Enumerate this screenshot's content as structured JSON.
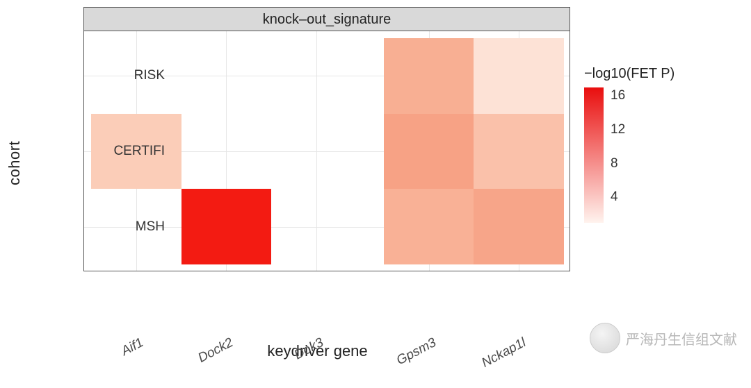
{
  "chart": {
    "type": "heatmap",
    "strip_label": "knock–out_signature",
    "x_label": "keydriver gene",
    "y_label": "cohort",
    "x_categories": [
      "Aif1",
      "Dock2",
      "Dok3",
      "Gpsm3",
      "Nckap1l"
    ],
    "y_categories": [
      "RISK",
      "CERTIFI",
      "MSH"
    ],
    "cells": [
      {
        "x": "Gpsm3",
        "y": "RISK",
        "value": 5.0,
        "color": "#f8af93"
      },
      {
        "x": "Nckap1l",
        "y": "RISK",
        "value": 2.0,
        "color": "#fde2d6"
      },
      {
        "x": "Aif1",
        "y": "CERTIFI",
        "value": 3.0,
        "color": "#fbcdb8"
      },
      {
        "x": "Gpsm3",
        "y": "CERTIFI",
        "value": 6.0,
        "color": "#f7a285"
      },
      {
        "x": "Nckap1l",
        "y": "CERTIFI",
        "value": 4.0,
        "color": "#fac1aa"
      },
      {
        "x": "Dock2",
        "y": "MSH",
        "value": 17.0,
        "color": "#f31b12"
      },
      {
        "x": "Gpsm3",
        "y": "MSH",
        "value": 5.0,
        "color": "#f9b196"
      },
      {
        "x": "Nckap1l",
        "y": "MSH",
        "value": 6.0,
        "color": "#f7a589"
      }
    ],
    "strip_bg": "#d9d9d9",
    "panel_bg": "#ffffff",
    "grid_color": "#e6e6e6",
    "border_color": "#555555",
    "x_italic": true,
    "xtick_rotation_deg": -28,
    "title_fontsize": 20,
    "label_fontsize": 22,
    "tick_fontsize": 19,
    "col_gap_after": "Dok3"
  },
  "legend": {
    "title": "−log10(FET P)",
    "ticks": [
      16,
      12,
      8,
      4
    ],
    "min": 1,
    "max": 17,
    "gradient_top": "#e90e0e",
    "gradient_bottom": "#fff3ee",
    "title_fontsize": 20,
    "tick_fontsize": 19
  },
  "watermark": {
    "text": "严海丹生信组文献"
  }
}
